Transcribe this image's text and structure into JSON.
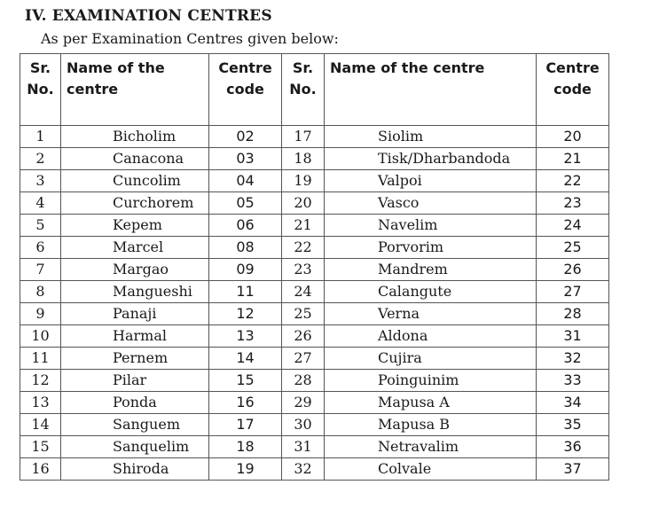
{
  "heading": "IV.  EXAMINATION CENTRES",
  "subheading": "As per Examination Centres given below:",
  "table": {
    "headers": {
      "sr_no_line1": "Sr.",
      "sr_no_line2": "No.",
      "name1_line1": "Name of the",
      "name1_line2": "centre",
      "code_line1": "Centre",
      "code_line2": "code",
      "sr_no2_line1": "Sr.",
      "sr_no2_line2": "No.",
      "name2": "Name of the centre",
      "code2_line1": "Centre",
      "code2_line2": "code"
    },
    "rows": [
      {
        "sr1": "1",
        "name1": "Bicholim",
        "code1": "02",
        "sr2": "17",
        "name2": "Siolim",
        "code2": "20"
      },
      {
        "sr1": "2",
        "name1": "Canacona",
        "code1": "03",
        "sr2": "18",
        "name2": "Tisk/Dharbandoda",
        "code2": "21"
      },
      {
        "sr1": "3",
        "name1": "Cuncolim",
        "code1": "04",
        "sr2": "19",
        "name2": "Valpoi",
        "code2": "22"
      },
      {
        "sr1": "4",
        "name1": "Curchorem",
        "code1": "05",
        "sr2": "20",
        "name2": "Vasco",
        "code2": "23"
      },
      {
        "sr1": "5",
        "name1": "Kepem",
        "code1": "06",
        "sr2": "21",
        "name2": "Navelim",
        "code2": "24"
      },
      {
        "sr1": "6",
        "name1": "Marcel",
        "code1": "08",
        "sr2": "22",
        "name2": "Porvorim",
        "code2": "25"
      },
      {
        "sr1": "7",
        "name1": "Margao",
        "code1": "09",
        "sr2": "23",
        "name2": "Mandrem",
        "code2": "26"
      },
      {
        "sr1": "8",
        "name1": "Mangueshi",
        "code1": "11",
        "sr2": "24",
        "name2": "Calangute",
        "code2": "27"
      },
      {
        "sr1": "9",
        "name1": "Panaji",
        "code1": "12",
        "sr2": "25",
        "name2": "Verna",
        "code2": "28"
      },
      {
        "sr1": "10",
        "name1": "Harmal",
        "code1": "13",
        "sr2": "26",
        "name2": "Aldona",
        "code2": "31"
      },
      {
        "sr1": "11",
        "name1": "Pernem",
        "code1": "14",
        "sr2": "27",
        "name2": "Cujira",
        "code2": "32"
      },
      {
        "sr1": "12",
        "name1": "Pilar",
        "code1": "15",
        "sr2": "28",
        "name2": "Poinguinim",
        "code2": "33"
      },
      {
        "sr1": "13",
        "name1": "Ponda",
        "code1": "16",
        "sr2": "29",
        "name2": "Mapusa A",
        "code2": "34"
      },
      {
        "sr1": "14",
        "name1": "Sanguem",
        "code1": "17",
        "sr2": "30",
        "name2": "Mapusa B",
        "code2": "35"
      },
      {
        "sr1": "15",
        "name1": "Sanquelim",
        "code1": "18",
        "sr2": "31",
        "name2": "Netravalim",
        "code2": "36"
      },
      {
        "sr1": "16",
        "name1": "Shiroda",
        "code1": "19",
        "sr2": "32",
        "name2": "Colvale",
        "code2": "37"
      }
    ]
  }
}
